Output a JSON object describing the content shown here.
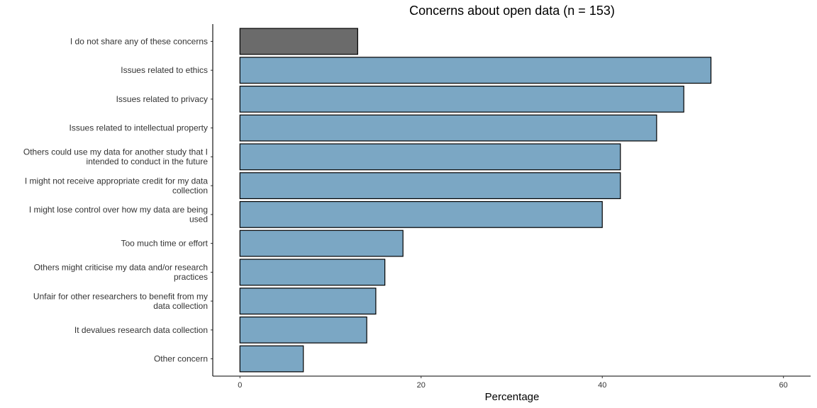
{
  "chart_data": {
    "type": "bar",
    "orientation": "horizontal",
    "title": "Concerns about open data (n = 153)",
    "xlabel": "Percentage",
    "ylabel": "",
    "xlim": [
      -3,
      63
    ],
    "xticks": [
      0,
      20,
      40,
      60
    ],
    "grid": false,
    "legend": "none",
    "categories": [
      [
        "I do not share any of these concerns"
      ],
      [
        "Issues related to ethics"
      ],
      [
        "Issues related to privacy"
      ],
      [
        "Issues related to intellectual property"
      ],
      [
        "Others could use my data for another study that I",
        "intended to conduct in the future"
      ],
      [
        "I might not receive appropriate credit for my data",
        "collection"
      ],
      [
        "I might lose control over how my data are being",
        "used"
      ],
      [
        "Too much time or effort"
      ],
      [
        "Others might criticise my data and/or research",
        "practices"
      ],
      [
        "Unfair for other researchers to benefit from my",
        "data collection"
      ],
      [
        "It devalues research data collection"
      ],
      [
        "Other concern"
      ]
    ],
    "values": [
      13,
      52,
      49,
      46,
      42,
      42,
      40,
      18,
      16,
      15,
      14,
      7
    ],
    "colors": {
      "highlight": "#6b6b6b",
      "bar": "#7ba7c4",
      "outline": "#000000"
    },
    "highlight_index": 0
  }
}
